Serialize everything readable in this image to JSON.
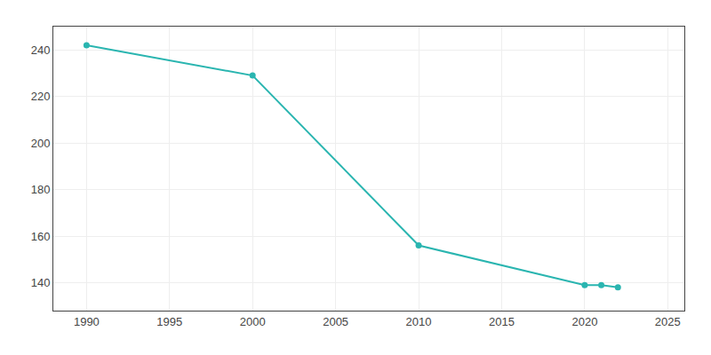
{
  "chart_data": {
    "type": "line",
    "x": [
      1990,
      2000,
      2010,
      2020,
      2021,
      2022
    ],
    "values": [
      242,
      229,
      156,
      139,
      139,
      138
    ],
    "color": "#2ab5b0",
    "marker": "circle",
    "xlim": [
      1988,
      2026
    ],
    "ylim": [
      128,
      250
    ],
    "xticks": [
      1990,
      1995,
      2000,
      2005,
      2010,
      2015,
      2020,
      2025
    ],
    "yticks": [
      140,
      160,
      180,
      200,
      220,
      240
    ],
    "grid": true
  }
}
